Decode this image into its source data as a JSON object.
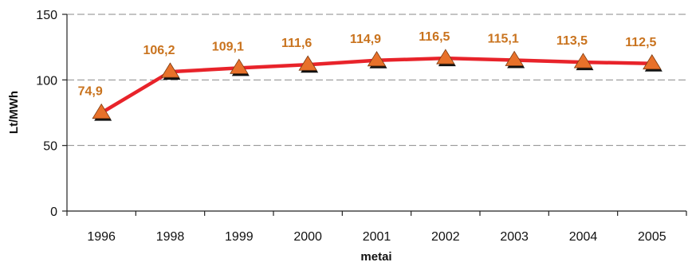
{
  "chart_data": {
    "type": "line",
    "categories": [
      "1996",
      "1998",
      "1999",
      "2000",
      "2001",
      "2002",
      "2003",
      "2004",
      "2005"
    ],
    "values": [
      74.9,
      106.2,
      109.1,
      111.6,
      114.9,
      116.5,
      115.1,
      113.5,
      112.5
    ],
    "value_labels": [
      "74,9",
      "106,2",
      "109,1",
      "111,6",
      "114,9",
      "116,5",
      "115,1",
      "113,5",
      "112,5"
    ],
    "ylabel": "Lt/MWh",
    "xlabel": "metai",
    "ylim": [
      0,
      150
    ],
    "yticks": [
      "0",
      "50",
      "100",
      "150"
    ],
    "grid": "horizontal-dashed",
    "legend": "none",
    "colors": {
      "line": "#E8232A",
      "marker_fill": "#E8712A",
      "marker_shadow": "#111111",
      "label": "#C9731E",
      "grid": "#8a8a8a"
    }
  }
}
